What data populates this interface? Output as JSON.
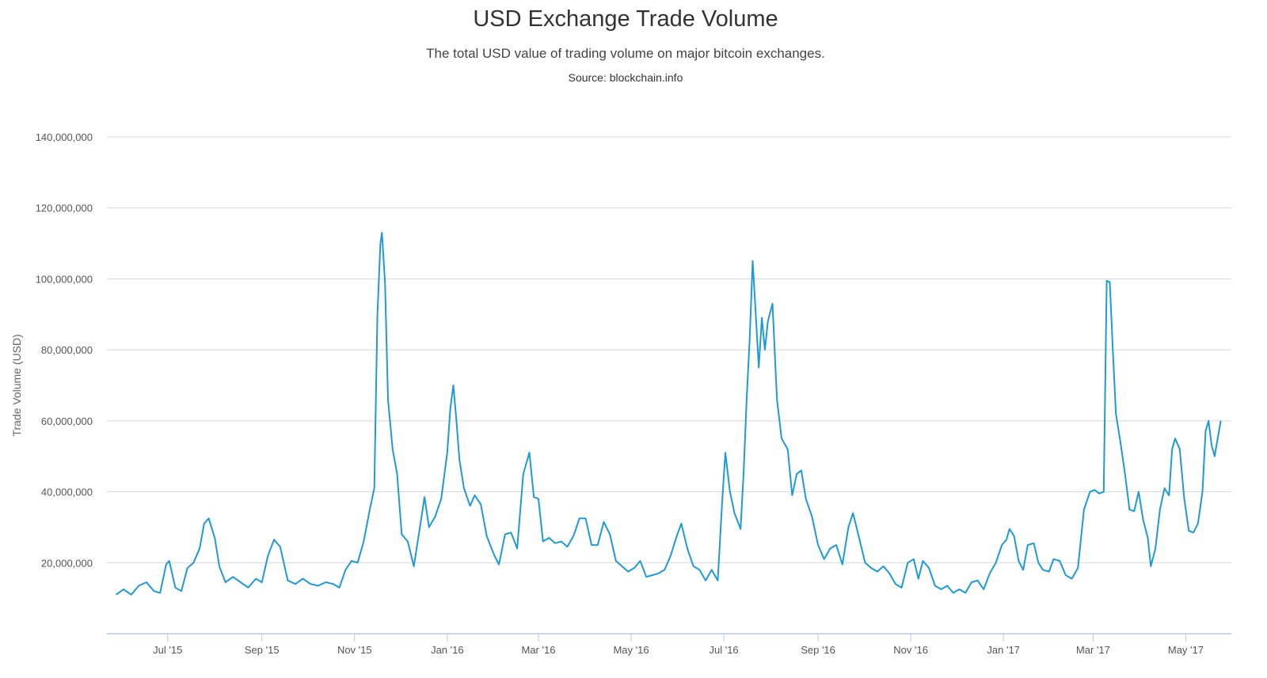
{
  "chart_data": {
    "type": "line",
    "title": "USD Exchange Trade Volume",
    "subtitle": "The total USD value of trading volume on major bitcoin exchanges.",
    "source": "Source: blockchain.info",
    "xlabel": "",
    "ylabel": "Trade Volume (USD)",
    "xlim": [
      "2015-05-22",
      "2017-05-31"
    ],
    "ylim": [
      0,
      140000000
    ],
    "grid": true,
    "legend": "none",
    "line_color": "#1f9ad6",
    "y_ticks": [
      {
        "value": 20000000,
        "label": "20,000,000"
      },
      {
        "value": 40000000,
        "label": "40,000,000"
      },
      {
        "value": 60000000,
        "label": "60,000,000"
      },
      {
        "value": 80000000,
        "label": "80,000,000"
      },
      {
        "value": 100000000,
        "label": "100,000,000"
      },
      {
        "value": 120000000,
        "label": "120,000,000"
      },
      {
        "value": 140000000,
        "label": "140,000,000"
      }
    ],
    "x_ticks": [
      {
        "date": "2015-07-01",
        "label": "Jul '15"
      },
      {
        "date": "2015-09-01",
        "label": "Sep '15"
      },
      {
        "date": "2015-11-01",
        "label": "Nov '15"
      },
      {
        "date": "2016-01-01",
        "label": "Jan '16"
      },
      {
        "date": "2016-03-01",
        "label": "Mar '16"
      },
      {
        "date": "2016-05-01",
        "label": "May '16"
      },
      {
        "date": "2016-07-01",
        "label": "Jul '16"
      },
      {
        "date": "2016-09-01",
        "label": "Sep '16"
      },
      {
        "date": "2016-11-01",
        "label": "Nov '16"
      },
      {
        "date": "2017-01-01",
        "label": "Jan '17"
      },
      {
        "date": "2017-03-01",
        "label": "Mar '17"
      },
      {
        "date": "2017-05-01",
        "label": "May '17"
      }
    ],
    "series": [
      {
        "points": [
          [
            "2015-05-28",
            11000000
          ],
          [
            "2015-06-02",
            12500000
          ],
          [
            "2015-06-07",
            11000000
          ],
          [
            "2015-06-12",
            13500000
          ],
          [
            "2015-06-17",
            14500000
          ],
          [
            "2015-06-22",
            12000000
          ],
          [
            "2015-06-26",
            11500000
          ],
          [
            "2015-06-30",
            19500000
          ],
          [
            "2015-07-02",
            20500000
          ],
          [
            "2015-07-06",
            13000000
          ],
          [
            "2015-07-10",
            12000000
          ],
          [
            "2015-07-14",
            18500000
          ],
          [
            "2015-07-18",
            20000000
          ],
          [
            "2015-07-22",
            24000000
          ],
          [
            "2015-07-25",
            31000000
          ],
          [
            "2015-07-28",
            32500000
          ],
          [
            "2015-08-01",
            27000000
          ],
          [
            "2015-08-04",
            19000000
          ],
          [
            "2015-08-08",
            14500000
          ],
          [
            "2015-08-13",
            16000000
          ],
          [
            "2015-08-18",
            14500000
          ],
          [
            "2015-08-23",
            13000000
          ],
          [
            "2015-08-28",
            15500000
          ],
          [
            "2015-09-01",
            14500000
          ],
          [
            "2015-09-05",
            22000000
          ],
          [
            "2015-09-09",
            26500000
          ],
          [
            "2015-09-13",
            24500000
          ],
          [
            "2015-09-18",
            15000000
          ],
          [
            "2015-09-23",
            14000000
          ],
          [
            "2015-09-28",
            15500000
          ],
          [
            "2015-10-03",
            14000000
          ],
          [
            "2015-10-08",
            13500000
          ],
          [
            "2015-10-13",
            14500000
          ],
          [
            "2015-10-18",
            14000000
          ],
          [
            "2015-10-22",
            13000000
          ],
          [
            "2015-10-26",
            18000000
          ],
          [
            "2015-10-30",
            20500000
          ],
          [
            "2015-11-03",
            20000000
          ],
          [
            "2015-11-07",
            26000000
          ],
          [
            "2015-11-11",
            35000000
          ],
          [
            "2015-11-14",
            41000000
          ],
          [
            "2015-11-16",
            90000000
          ],
          [
            "2015-11-18",
            110000000
          ],
          [
            "2015-11-19",
            113000000
          ],
          [
            "2015-11-21",
            99000000
          ],
          [
            "2015-11-23",
            66000000
          ],
          [
            "2015-11-26",
            52000000
          ],
          [
            "2015-11-29",
            45000000
          ],
          [
            "2015-12-02",
            28000000
          ],
          [
            "2015-12-06",
            26000000
          ],
          [
            "2015-12-10",
            19000000
          ],
          [
            "2015-12-14",
            30000000
          ],
          [
            "2015-12-17",
            38500000
          ],
          [
            "2015-12-20",
            30000000
          ],
          [
            "2015-12-24",
            33000000
          ],
          [
            "2015-12-28",
            38000000
          ],
          [
            "2016-01-01",
            51000000
          ],
          [
            "2016-01-03",
            63500000
          ],
          [
            "2016-01-05",
            70000000
          ],
          [
            "2016-01-07",
            60000000
          ],
          [
            "2016-01-09",
            49000000
          ],
          [
            "2016-01-12",
            41000000
          ],
          [
            "2016-01-16",
            36000000
          ],
          [
            "2016-01-19",
            39000000
          ],
          [
            "2016-01-23",
            36500000
          ],
          [
            "2016-01-27",
            27500000
          ],
          [
            "2016-02-01",
            22000000
          ],
          [
            "2016-02-04",
            19500000
          ],
          [
            "2016-02-08",
            28000000
          ],
          [
            "2016-02-12",
            28500000
          ],
          [
            "2016-02-16",
            24000000
          ],
          [
            "2016-02-20",
            45000000
          ],
          [
            "2016-02-24",
            51000000
          ],
          [
            "2016-02-27",
            38500000
          ],
          [
            "2016-03-01",
            38000000
          ],
          [
            "2016-03-04",
            26000000
          ],
          [
            "2016-03-08",
            27000000
          ],
          [
            "2016-03-12",
            25500000
          ],
          [
            "2016-03-16",
            26000000
          ],
          [
            "2016-03-20",
            24500000
          ],
          [
            "2016-03-24",
            27500000
          ],
          [
            "2016-03-28",
            32500000
          ],
          [
            "2016-04-01",
            32500000
          ],
          [
            "2016-04-05",
            25000000
          ],
          [
            "2016-04-09",
            25000000
          ],
          [
            "2016-04-13",
            31500000
          ],
          [
            "2016-04-17",
            28000000
          ],
          [
            "2016-04-21",
            20500000
          ],
          [
            "2016-04-25",
            19000000
          ],
          [
            "2016-04-29",
            17500000
          ],
          [
            "2016-05-03",
            18500000
          ],
          [
            "2016-05-07",
            20500000
          ],
          [
            "2016-05-11",
            16000000
          ],
          [
            "2016-05-15",
            16500000
          ],
          [
            "2016-05-19",
            17000000
          ],
          [
            "2016-05-23",
            18000000
          ],
          [
            "2016-05-27",
            22000000
          ],
          [
            "2016-05-31",
            27500000
          ],
          [
            "2016-06-03",
            31000000
          ],
          [
            "2016-06-07",
            24000000
          ],
          [
            "2016-06-11",
            19000000
          ],
          [
            "2016-06-15",
            18000000
          ],
          [
            "2016-06-19",
            15000000
          ],
          [
            "2016-06-23",
            18000000
          ],
          [
            "2016-06-27",
            15000000
          ],
          [
            "2016-06-30",
            38000000
          ],
          [
            "2016-07-02",
            51000000
          ],
          [
            "2016-07-05",
            40000000
          ],
          [
            "2016-07-08",
            34000000
          ],
          [
            "2016-07-12",
            29500000
          ],
          [
            "2016-07-14",
            45000000
          ],
          [
            "2016-07-16",
            66000000
          ],
          [
            "2016-07-18",
            83000000
          ],
          [
            "2016-07-20",
            105000000
          ],
          [
            "2016-07-22",
            90000000
          ],
          [
            "2016-07-24",
            75000000
          ],
          [
            "2016-07-26",
            89000000
          ],
          [
            "2016-07-28",
            80000000
          ],
          [
            "2016-07-30",
            88000000
          ],
          [
            "2016-08-02",
            93000000
          ],
          [
            "2016-08-05",
            66000000
          ],
          [
            "2016-08-08",
            55000000
          ],
          [
            "2016-08-12",
            52000000
          ],
          [
            "2016-08-15",
            39000000
          ],
          [
            "2016-08-18",
            45000000
          ],
          [
            "2016-08-21",
            46000000
          ],
          [
            "2016-08-24",
            38000000
          ],
          [
            "2016-08-28",
            33000000
          ],
          [
            "2016-09-01",
            25000000
          ],
          [
            "2016-09-05",
            21000000
          ],
          [
            "2016-09-09",
            24000000
          ],
          [
            "2016-09-13",
            25000000
          ],
          [
            "2016-09-17",
            19500000
          ],
          [
            "2016-09-21",
            30000000
          ],
          [
            "2016-09-24",
            34000000
          ],
          [
            "2016-09-28",
            27000000
          ],
          [
            "2016-10-02",
            20000000
          ],
          [
            "2016-10-06",
            18500000
          ],
          [
            "2016-10-10",
            17500000
          ],
          [
            "2016-10-14",
            19000000
          ],
          [
            "2016-10-18",
            17000000
          ],
          [
            "2016-10-22",
            14000000
          ],
          [
            "2016-10-26",
            13000000
          ],
          [
            "2016-10-30",
            20000000
          ],
          [
            "2016-11-03",
            21000000
          ],
          [
            "2016-11-06",
            15500000
          ],
          [
            "2016-11-09",
            20500000
          ],
          [
            "2016-11-13",
            18500000
          ],
          [
            "2016-11-17",
            13500000
          ],
          [
            "2016-11-21",
            12500000
          ],
          [
            "2016-11-25",
            13500000
          ],
          [
            "2016-11-29",
            11500000
          ],
          [
            "2016-12-03",
            12500000
          ],
          [
            "2016-12-07",
            11500000
          ],
          [
            "2016-12-11",
            14500000
          ],
          [
            "2016-12-15",
            15000000
          ],
          [
            "2016-12-19",
            12500000
          ],
          [
            "2016-12-23",
            17000000
          ],
          [
            "2016-12-27",
            20000000
          ],
          [
            "2016-12-31",
            25000000
          ],
          [
            "2017-01-03",
            26500000
          ],
          [
            "2017-01-05",
            29500000
          ],
          [
            "2017-01-08",
            27500000
          ],
          [
            "2017-01-11",
            20500000
          ],
          [
            "2017-01-14",
            18000000
          ],
          [
            "2017-01-17",
            25000000
          ],
          [
            "2017-01-21",
            25500000
          ],
          [
            "2017-01-24",
            20000000
          ],
          [
            "2017-01-27",
            18000000
          ],
          [
            "2017-01-31",
            17500000
          ],
          [
            "2017-02-03",
            21000000
          ],
          [
            "2017-02-07",
            20500000
          ],
          [
            "2017-02-11",
            16500000
          ],
          [
            "2017-02-15",
            15500000
          ],
          [
            "2017-02-19",
            18500000
          ],
          [
            "2017-02-23",
            35000000
          ],
          [
            "2017-02-27",
            40000000
          ],
          [
            "2017-03-02",
            40500000
          ],
          [
            "2017-03-05",
            39500000
          ],
          [
            "2017-03-08",
            40000000
          ],
          [
            "2017-03-10",
            99500000
          ],
          [
            "2017-03-12",
            99000000
          ],
          [
            "2017-03-14",
            80000000
          ],
          [
            "2017-03-16",
            62000000
          ],
          [
            "2017-03-19",
            54000000
          ],
          [
            "2017-03-22",
            45000000
          ],
          [
            "2017-03-25",
            35000000
          ],
          [
            "2017-03-28",
            34500000
          ],
          [
            "2017-03-31",
            40000000
          ],
          [
            "2017-04-03",
            32000000
          ],
          [
            "2017-04-06",
            27000000
          ],
          [
            "2017-04-08",
            19000000
          ],
          [
            "2017-04-11",
            24000000
          ],
          [
            "2017-04-14",
            35000000
          ],
          [
            "2017-04-17",
            41000000
          ],
          [
            "2017-04-20",
            39000000
          ],
          [
            "2017-04-22",
            52000000
          ],
          [
            "2017-04-24",
            55000000
          ],
          [
            "2017-04-27",
            52000000
          ],
          [
            "2017-04-30",
            38000000
          ],
          [
            "2017-05-03",
            29000000
          ],
          [
            "2017-05-06",
            28500000
          ],
          [
            "2017-05-09",
            31000000
          ],
          [
            "2017-05-12",
            40000000
          ],
          [
            "2017-05-14",
            57000000
          ],
          [
            "2017-05-16",
            60000000
          ],
          [
            "2017-05-18",
            53000000
          ],
          [
            "2017-05-20",
            50000000
          ],
          [
            "2017-05-22",
            55000000
          ],
          [
            "2017-05-24",
            60000000
          ]
        ]
      }
    ]
  }
}
